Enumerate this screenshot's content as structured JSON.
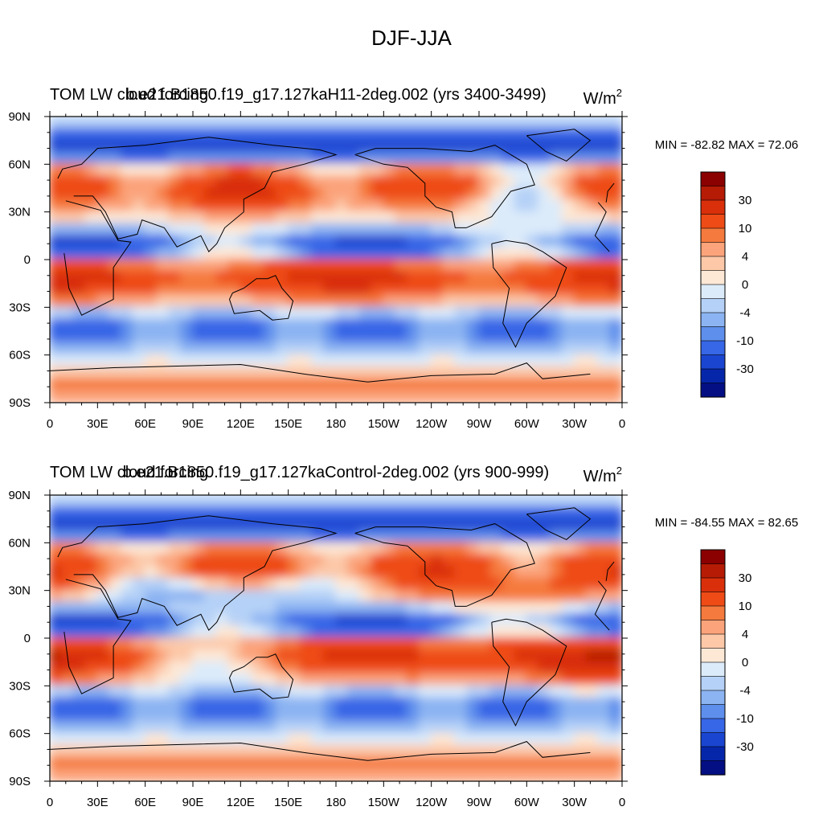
{
  "chart_data": {
    "type": "heatmap",
    "suptitle": "DJF-JJA",
    "panels": [
      {
        "left_title": "TOM LW cloud forcing",
        "center_title": "b.e21.B1850.f19_g17.127kaH11-2deg.002 (yrs 3400-3499)",
        "right_title": "W/m",
        "right_title_sup": "2",
        "stats": "MIN = -82.82 MAX =  72.06",
        "min": -82.82,
        "max": 72.06,
        "field": "banded_cool_north_warm_tropics"
      },
      {
        "left_title": "TOM LW cloud forcing",
        "center_title": "b.e21.B1850.f19_g17.127kaControl-2deg.002 (yrs 900-999)",
        "right_title": "W/m",
        "right_title_sup": "2",
        "stats": "MIN = -84.55 MAX =  82.65",
        "min": -84.55,
        "max": 82.65,
        "field": "banded_cool_north_warm_tropics"
      }
    ],
    "x_ticks": [
      "0",
      "30E",
      "60E",
      "90E",
      "120E",
      "150E",
      "180",
      "150W",
      "120W",
      "90W",
      "60W",
      "30W",
      "0"
    ],
    "y_ticks": [
      "90N",
      "60N",
      "30N",
      "0",
      "30S",
      "60S",
      "90S"
    ],
    "lat_range": [
      -90,
      90
    ],
    "lon_range": [
      0,
      360
    ],
    "colorbar": {
      "levels": [
        -40,
        -30,
        -20,
        -10,
        -7,
        -4,
        -2,
        0,
        2,
        4,
        7,
        10,
        20,
        30,
        40
      ],
      "labels": [
        "30",
        "10",
        "4",
        "0",
        "-4",
        "-10",
        "-30"
      ],
      "colors": [
        "#8b0000",
        "#b51b05",
        "#d92f0b",
        "#ee4b16",
        "#f57a3e",
        "#fba37a",
        "#fcc8a8",
        "#fde8d6",
        "#dcebfa",
        "#b5d1f7",
        "#8cb4f2",
        "#5e8fec",
        "#3766e6",
        "#1a45d0",
        "#0626aa",
        "#040f84"
      ]
    }
  }
}
